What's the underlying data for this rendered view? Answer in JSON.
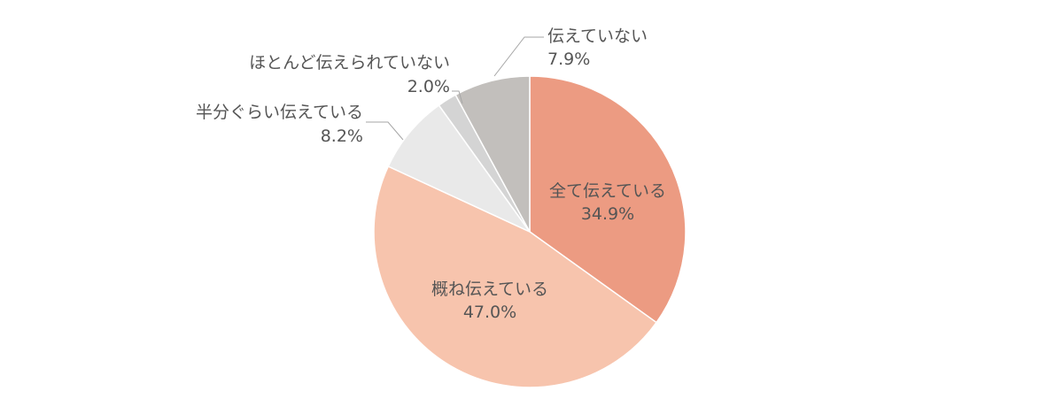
{
  "chart_data": {
    "type": "pie",
    "categories": [
      "全て伝えている",
      "概ね伝えている",
      "半分ぐらい伝えている",
      "ほとんど伝えられていない",
      "伝えていない"
    ],
    "values": [
      34.9,
      47.0,
      8.2,
      2.0,
      7.9
    ],
    "value_labels": [
      "34.9%",
      "47.0%",
      "8.2%",
      "2.0%",
      "7.9%"
    ],
    "colors": [
      "#ec9b82",
      "#f7c4ad",
      "#e9e9e9",
      "#d4d4d4",
      "#c2bfbc"
    ],
    "start": "12 o'clock",
    "direction": "clockwise",
    "legend": "none"
  }
}
